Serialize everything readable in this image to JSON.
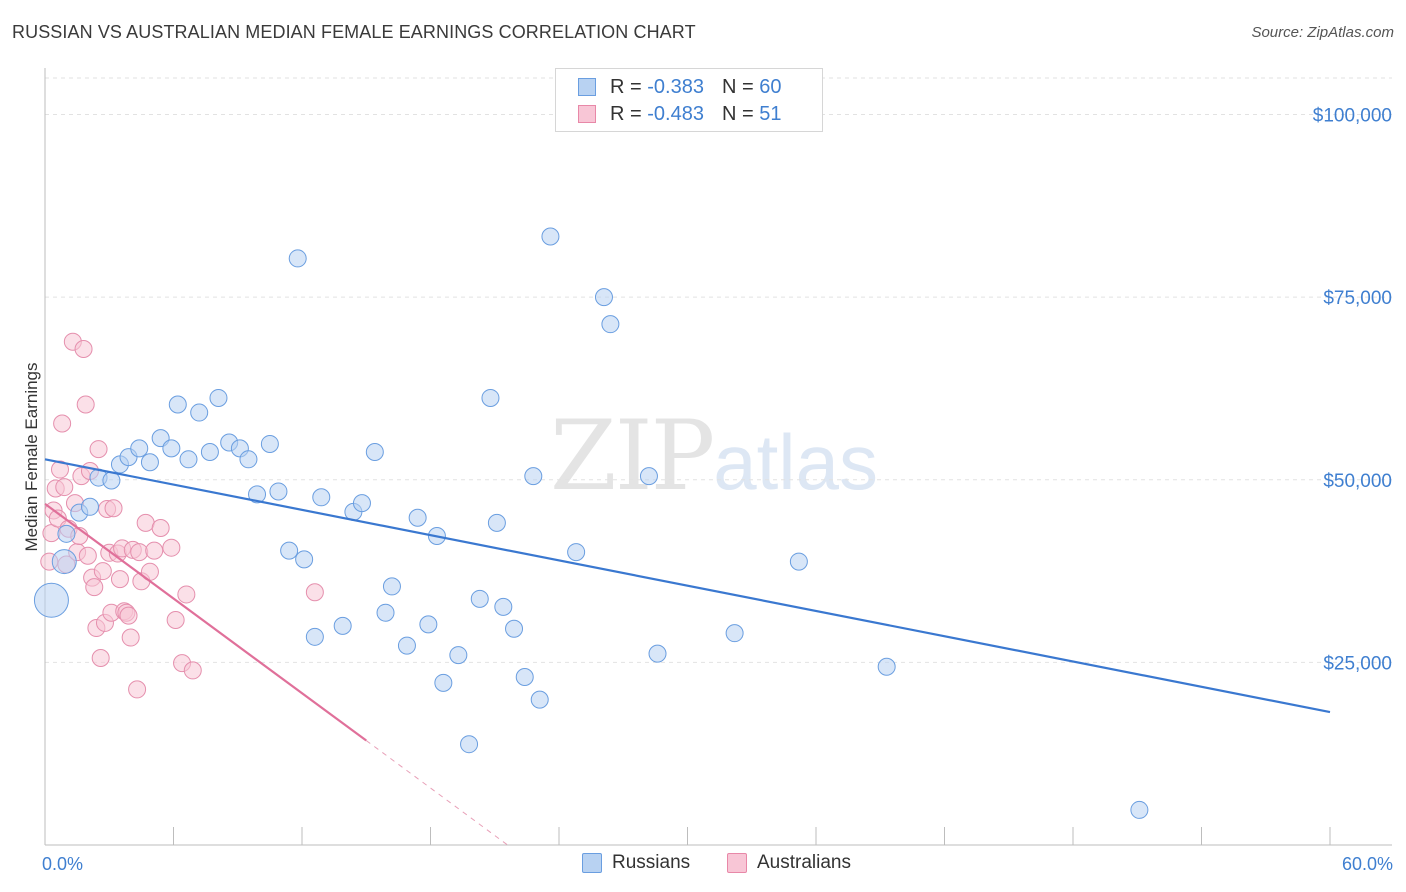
{
  "header": {
    "title": "RUSSIAN VS AUSTRALIAN MEDIAN FEMALE EARNINGS CORRELATION CHART",
    "source": "Source: ZipAtlas.com"
  },
  "watermark": {
    "zip": "ZIP",
    "atlas": "atlas"
  },
  "legend": {
    "russians": {
      "r_label": "R = ",
      "r_value": "-0.383",
      "n_label": "N = ",
      "n_value": "60",
      "color": "#6a9ee0",
      "fill": "#b8d2f2"
    },
    "australians": {
      "r_label": "R = ",
      "r_value": "-0.483",
      "n_label": "N = ",
      "n_value": "51",
      "color": "#e888a8",
      "fill": "#f8c6d6"
    }
  },
  "bottom_legend": {
    "russians": "Russians",
    "australians": "Australians"
  },
  "chart_data": {
    "type": "scatter",
    "title": "RUSSIAN VS AUSTRALIAN MEDIAN FEMALE EARNINGS CORRELATION CHART",
    "xlabel": "",
    "ylabel": "Median Female Earnings",
    "xlim": [
      0,
      60
    ],
    "ylim": [
      0,
      105000
    ],
    "x_tick_labels": [
      "0.0%",
      "60.0%"
    ],
    "y_ticks": [
      {
        "value": 25000,
        "label": "$25,000"
      },
      {
        "value": 50000,
        "label": "$50,000"
      },
      {
        "value": 75000,
        "label": "$75,000"
      },
      {
        "value": 100000,
        "label": "$100,000"
      }
    ],
    "series": [
      {
        "name": "Russians",
        "color": "#3f7fd0",
        "points": [
          [
            0.3,
            33500
          ],
          [
            0.9,
            38800
          ],
          [
            1.0,
            42600
          ],
          [
            1.6,
            45500
          ],
          [
            2.1,
            46300
          ],
          [
            2.5,
            50300
          ],
          [
            3.1,
            49900
          ],
          [
            3.5,
            52100
          ],
          [
            3.9,
            53100
          ],
          [
            4.4,
            54300
          ],
          [
            4.9,
            52400
          ],
          [
            5.4,
            55700
          ],
          [
            5.9,
            54300
          ],
          [
            6.2,
            60300
          ],
          [
            6.7,
            52800
          ],
          [
            7.2,
            59200
          ],
          [
            7.7,
            53800
          ],
          [
            8.1,
            61200
          ],
          [
            8.6,
            55100
          ],
          [
            9.1,
            54300
          ],
          [
            9.5,
            52800
          ],
          [
            9.9,
            48000
          ],
          [
            10.5,
            54900
          ],
          [
            10.9,
            48400
          ],
          [
            11.4,
            40300
          ],
          [
            11.8,
            80300
          ],
          [
            12.1,
            39100
          ],
          [
            12.6,
            28500
          ],
          [
            12.9,
            47600
          ],
          [
            13.9,
            30000
          ],
          [
            14.4,
            45600
          ],
          [
            14.8,
            46800
          ],
          [
            15.4,
            53800
          ],
          [
            15.9,
            31800
          ],
          [
            16.2,
            35400
          ],
          [
            16.9,
            27300
          ],
          [
            17.4,
            44800
          ],
          [
            17.9,
            30200
          ],
          [
            18.3,
            42300
          ],
          [
            18.6,
            22200
          ],
          [
            19.3,
            26000
          ],
          [
            19.8,
            13800
          ],
          [
            20.3,
            33700
          ],
          [
            20.8,
            61200
          ],
          [
            21.1,
            44100
          ],
          [
            21.4,
            32600
          ],
          [
            21.9,
            29600
          ],
          [
            22.4,
            23000
          ],
          [
            22.8,
            50500
          ],
          [
            23.1,
            19900
          ],
          [
            23.6,
            83300
          ],
          [
            24.8,
            40100
          ],
          [
            26.1,
            75000
          ],
          [
            26.4,
            71300
          ],
          [
            28.2,
            50500
          ],
          [
            28.6,
            26200
          ],
          [
            32.2,
            29000
          ],
          [
            35.2,
            38800
          ],
          [
            39.3,
            24400
          ],
          [
            51.1,
            4800
          ]
        ],
        "regression": {
          "x": [
            0,
            60
          ],
          "y": [
            52800,
            18200
          ]
        }
      },
      {
        "name": "Australians",
        "color": "#e0709a",
        "points": [
          [
            0.2,
            38800
          ],
          [
            0.3,
            42700
          ],
          [
            0.4,
            45800
          ],
          [
            0.5,
            48800
          ],
          [
            0.6,
            44700
          ],
          [
            0.7,
            51400
          ],
          [
            0.8,
            57700
          ],
          [
            0.9,
            49000
          ],
          [
            1.0,
            38400
          ],
          [
            1.1,
            43300
          ],
          [
            1.3,
            68900
          ],
          [
            1.4,
            46800
          ],
          [
            1.5,
            40100
          ],
          [
            1.6,
            42300
          ],
          [
            1.7,
            50500
          ],
          [
            1.8,
            67900
          ],
          [
            1.9,
            60300
          ],
          [
            2.0,
            39600
          ],
          [
            2.1,
            51200
          ],
          [
            2.2,
            36600
          ],
          [
            2.3,
            35300
          ],
          [
            2.4,
            29700
          ],
          [
            2.5,
            54200
          ],
          [
            2.6,
            25600
          ],
          [
            2.7,
            37500
          ],
          [
            2.8,
            30400
          ],
          [
            2.9,
            46000
          ],
          [
            3.0,
            40000
          ],
          [
            3.1,
            31800
          ],
          [
            3.2,
            46100
          ],
          [
            3.4,
            39900
          ],
          [
            3.5,
            36400
          ],
          [
            3.6,
            40600
          ],
          [
            3.7,
            32000
          ],
          [
            3.8,
            31800
          ],
          [
            3.9,
            31400
          ],
          [
            4.0,
            28400
          ],
          [
            4.1,
            40400
          ],
          [
            4.3,
            21300
          ],
          [
            4.4,
            40100
          ],
          [
            4.5,
            36100
          ],
          [
            4.7,
            44100
          ],
          [
            4.9,
            37400
          ],
          [
            5.1,
            40300
          ],
          [
            5.4,
            43400
          ],
          [
            5.9,
            40700
          ],
          [
            6.1,
            30800
          ],
          [
            6.4,
            24900
          ],
          [
            6.6,
            34300
          ],
          [
            6.9,
            23900
          ],
          [
            12.6,
            34600
          ]
        ],
        "regression": {
          "x": [
            0,
            15
          ],
          "y": [
            46700,
            14300
          ]
        },
        "regression_extension": {
          "x": [
            15,
            21.6
          ],
          "y": [
            14300,
            0
          ]
        }
      }
    ]
  }
}
